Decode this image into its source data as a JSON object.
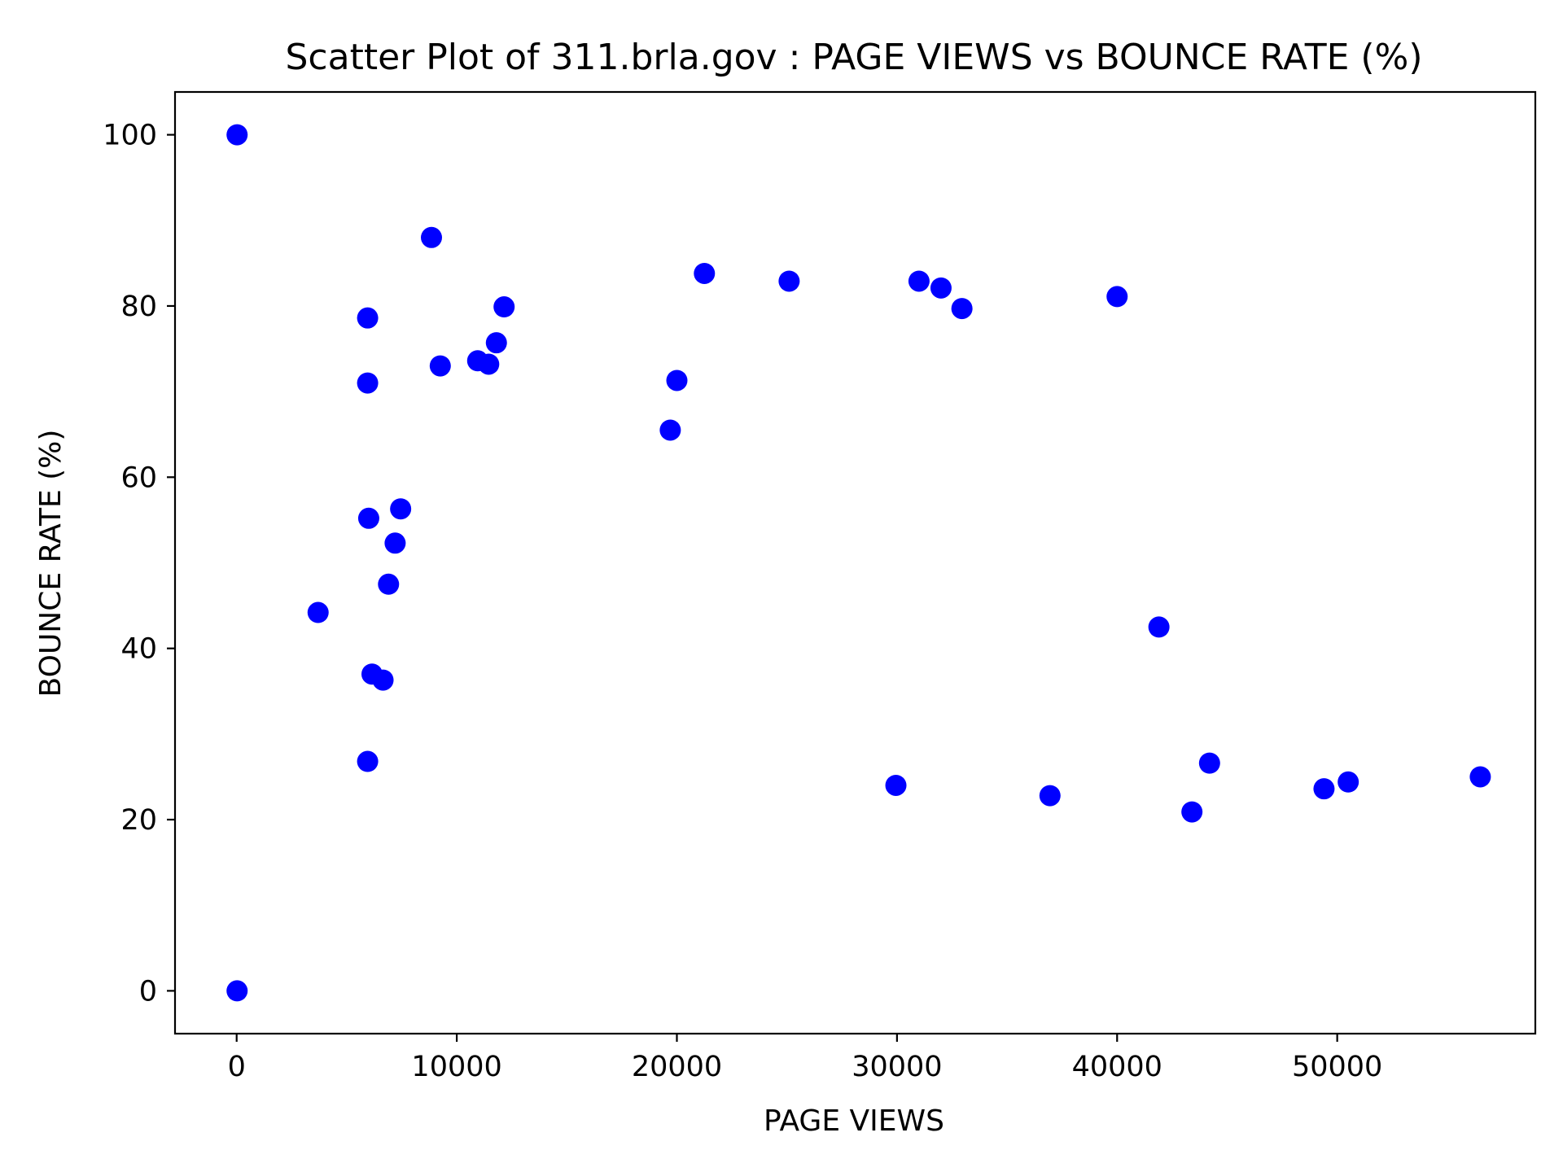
{
  "chart_data": {
    "type": "scatter",
    "title": "Scatter Plot of 311.brla.gov : PAGE VIEWS vs BOUNCE RATE (%)",
    "xlabel": "PAGE VIEWS",
    "ylabel": "BOUNCE RATE (%)",
    "xlim": [
      -2800,
      59000
    ],
    "ylim": [
      -5,
      105
    ],
    "x_ticks": [
      {
        "value": 0,
        "label": "0"
      },
      {
        "value": 10000,
        "label": "10000"
      },
      {
        "value": 20000,
        "label": "20000"
      },
      {
        "value": 30000,
        "label": "30000"
      },
      {
        "value": 40000,
        "label": "40000"
      },
      {
        "value": 50000,
        "label": "50000"
      }
    ],
    "y_ticks": [
      {
        "value": 0,
        "label": "0"
      },
      {
        "value": 20,
        "label": "20"
      },
      {
        "value": 40,
        "label": "40"
      },
      {
        "value": 60,
        "label": "60"
      },
      {
        "value": 80,
        "label": "80"
      },
      {
        "value": 100,
        "label": "100"
      }
    ],
    "grid": false,
    "marker_color": "#0000ff",
    "points": [
      {
        "x": 20,
        "y": 100
      },
      {
        "x": 20,
        "y": 0
      },
      {
        "x": 3700,
        "y": 44.2
      },
      {
        "x": 5950,
        "y": 78.6
      },
      {
        "x": 5950,
        "y": 71.0
      },
      {
        "x": 6000,
        "y": 55.2
      },
      {
        "x": 5950,
        "y": 26.8
      },
      {
        "x": 6150,
        "y": 37.0
      },
      {
        "x": 6650,
        "y": 36.3
      },
      {
        "x": 6900,
        "y": 47.5
      },
      {
        "x": 7200,
        "y": 52.3
      },
      {
        "x": 7450,
        "y": 56.3
      },
      {
        "x": 8850,
        "y": 88.0
      },
      {
        "x": 9250,
        "y": 73.0
      },
      {
        "x": 10950,
        "y": 73.6
      },
      {
        "x": 11450,
        "y": 73.2
      },
      {
        "x": 11800,
        "y": 75.7
      },
      {
        "x": 12150,
        "y": 79.9
      },
      {
        "x": 19700,
        "y": 65.5
      },
      {
        "x": 20000,
        "y": 71.3
      },
      {
        "x": 21250,
        "y": 83.8
      },
      {
        "x": 25100,
        "y": 82.9
      },
      {
        "x": 29950,
        "y": 24.0
      },
      {
        "x": 31000,
        "y": 82.9
      },
      {
        "x": 32000,
        "y": 82.1
      },
      {
        "x": 32950,
        "y": 79.7
      },
      {
        "x": 36950,
        "y": 22.8
      },
      {
        "x": 40000,
        "y": 81.1
      },
      {
        "x": 41900,
        "y": 42.5
      },
      {
        "x": 43400,
        "y": 20.9
      },
      {
        "x": 44200,
        "y": 26.6
      },
      {
        "x": 49400,
        "y": 23.6
      },
      {
        "x": 50500,
        "y": 24.4
      },
      {
        "x": 56500,
        "y": 25.0
      }
    ]
  }
}
